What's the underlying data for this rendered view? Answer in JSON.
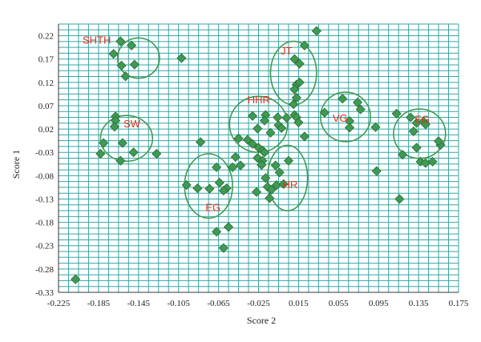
{
  "chart_data": {
    "type": "scatter",
    "xlabel": "Score 2",
    "ylabel": "Score 1",
    "xlim": [
      -0.225,
      0.175
    ],
    "ylim": [
      -0.33,
      0.245
    ],
    "x_ticks": [
      "-0.225",
      "-0.185",
      "-0.145",
      "-0.105",
      "-0.065",
      "-0.025",
      "0.015",
      "0.055",
      "0.095",
      "0.135",
      "0.175"
    ],
    "y_ticks": [
      "0.22",
      "0.17",
      "0.12",
      "0.07",
      "0.02",
      "-0.03",
      "-0.08",
      "-0.13",
      "-0.18",
      "-0.23",
      "-0.28",
      "-0.33"
    ],
    "grid": true,
    "marker": "diamond",
    "colors": {
      "grid": "#3aa3a3",
      "marker_fill": "#3f9a52",
      "marker_stroke": "#2a6a37",
      "ellipse": "#3f9a52",
      "label": "#e0301e",
      "axis": "#333333"
    },
    "clusters": [
      {
        "label": "SHTH",
        "center": [
          -0.145,
          0.172
        ],
        "radii": [
          0.021,
          0.043
        ]
      },
      {
        "label": "SW",
        "center": [
          -0.157,
          0.0
        ],
        "radii": [
          0.026,
          0.049
        ]
      },
      {
        "label": "EG",
        "center": [
          -0.075,
          -0.102
        ],
        "radii": [
          0.024,
          0.069
        ]
      },
      {
        "label": "HHR",
        "center": [
          -0.025,
          0.03
        ],
        "radii": [
          0.029,
          0.06
        ]
      },
      {
        "label": "JT",
        "center": [
          0.01,
          0.14
        ],
        "radii": [
          0.023,
          0.068
        ]
      },
      {
        "label": "HR",
        "center": [
          0.004,
          -0.085
        ],
        "radii": [
          0.02,
          0.07
        ]
      },
      {
        "label": "VG",
        "center": [
          0.062,
          0.046
        ],
        "radii": [
          0.025,
          0.053
        ]
      },
      {
        "label": "EG",
        "center": [
          0.136,
          0.01
        ],
        "radii": [
          0.026,
          0.053
        ]
      }
    ],
    "points": [
      [
        -0.208,
        -0.302
      ],
      [
        -0.163,
        0.208
      ],
      [
        -0.152,
        0.199
      ],
      [
        -0.17,
        0.181
      ],
      [
        -0.162,
        0.156
      ],
      [
        -0.149,
        0.158
      ],
      [
        -0.158,
        0.133
      ],
      [
        -0.168,
        0.047
      ],
      [
        -0.168,
        0.038
      ],
      [
        -0.169,
        0.025
      ],
      [
        -0.18,
        -0.01
      ],
      [
        -0.161,
        -0.01
      ],
      [
        -0.15,
        -0.03
      ],
      [
        -0.183,
        -0.033
      ],
      [
        -0.163,
        -0.048
      ],
      [
        -0.127,
        -0.033
      ],
      [
        -0.102,
        0.172
      ],
      [
        -0.083,
        -0.008
      ],
      [
        -0.097,
        -0.1
      ],
      [
        -0.086,
        -0.107
      ],
      [
        -0.074,
        -0.108
      ],
      [
        -0.067,
        -0.062
      ],
      [
        -0.064,
        -0.095
      ],
      [
        -0.057,
        -0.107
      ],
      [
        -0.06,
        -0.112
      ],
      [
        -0.051,
        -0.062
      ],
      [
        -0.055,
        -0.19
      ],
      [
        -0.067,
        -0.2
      ],
      [
        -0.06,
        -0.235
      ],
      [
        -0.045,
        0.0
      ],
      [
        -0.031,
        0.048
      ],
      [
        -0.018,
        0.05
      ],
      [
        -0.019,
        0.038
      ],
      [
        -0.026,
        0.021
      ],
      [
        -0.013,
        0.012
      ],
      [
        -0.036,
        -0.003
      ],
      [
        -0.031,
        -0.012
      ],
      [
        -0.025,
        -0.02
      ],
      [
        -0.021,
        -0.026
      ],
      [
        -0.019,
        -0.03
      ],
      [
        -0.048,
        -0.04
      ],
      [
        -0.043,
        -0.058
      ],
      [
        -0.026,
        -0.042
      ],
      [
        -0.021,
        -0.048
      ],
      [
        -0.005,
        0.028
      ],
      [
        -0.002,
        0.022
      ],
      [
        -0.006,
        0.045
      ],
      [
        0.033,
        0.23
      ],
      [
        0.021,
        0.199
      ],
      [
        0.011,
        0.17
      ],
      [
        0.016,
        0.16
      ],
      [
        0.013,
        0.115
      ],
      [
        0.016,
        0.12
      ],
      [
        0.011,
        0.105
      ],
      [
        0.013,
        0.087
      ],
      [
        0.01,
        0.073
      ],
      [
        0.011,
        0.05
      ],
      [
        0.013,
        0.045
      ],
      [
        0.015,
        0.034
      ],
      [
        0.003,
        0.044
      ],
      [
        0.021,
        0.004
      ],
      [
        0.005,
        -0.048
      ],
      [
        -0.008,
        -0.058
      ],
      [
        -0.004,
        -0.073
      ],
      [
        -0.022,
        -0.057
      ],
      [
        -0.018,
        -0.085
      ],
      [
        -0.016,
        -0.104
      ],
      [
        -0.007,
        -0.1
      ],
      [
        0.0,
        -0.098
      ],
      [
        -0.012,
        -0.11
      ],
      [
        -0.027,
        -0.115
      ],
      [
        -0.014,
        -0.128
      ],
      [
        0.041,
        0.055
      ],
      [
        0.059,
        0.085
      ],
      [
        0.074,
        0.077
      ],
      [
        0.077,
        0.062
      ],
      [
        0.066,
        0.037
      ],
      [
        0.066,
        0.023
      ],
      [
        0.092,
        0.024
      ],
      [
        0.093,
        -0.07
      ],
      [
        0.113,
        0.053
      ],
      [
        0.127,
        0.045
      ],
      [
        0.133,
        0.033
      ],
      [
        0.14,
        0.036
      ],
      [
        0.142,
        0.03
      ],
      [
        0.13,
        0.015
      ],
      [
        0.157,
        -0.014
      ],
      [
        0.155,
        -0.006
      ],
      [
        0.133,
        -0.02
      ],
      [
        0.119,
        -0.035
      ],
      [
        0.137,
        -0.05
      ],
      [
        0.142,
        -0.053
      ],
      [
        0.149,
        -0.05
      ],
      [
        0.116,
        -0.13
      ]
    ]
  }
}
